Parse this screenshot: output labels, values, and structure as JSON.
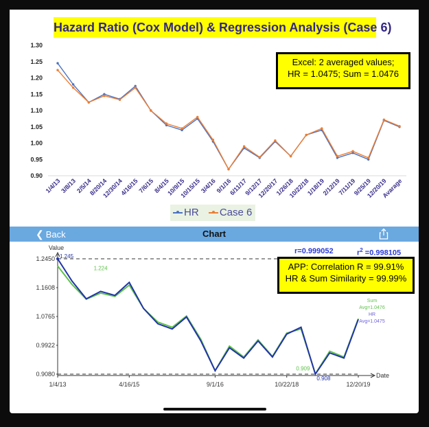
{
  "excel": {
    "title": "Hazard Ratio (Cox Model) & Regression Analysis (Case 6)",
    "note_line1": "Excel:  2 averaged values;",
    "note_line2": "HR = 1.0475; Sum = 1.0476",
    "legend": [
      "HR",
      "Case 6"
    ]
  },
  "app": {
    "back_label": "Back",
    "title": "Chart",
    "r_text": "r=0.999052",
    "r2_label": "r",
    "r2_sup": "2",
    "r2_value": " =0.998105",
    "note_line1": "APP:  Correlation R = 99.91%",
    "note_line2": "HR & Sum Similarity = 99.99%",
    "y_axis_label": "Value",
    "x_axis_label": "Date",
    "max_labels": [
      "1.245",
      "1.224"
    ],
    "min_labels": [
      "0.909",
      "0.908"
    ],
    "end_labels": {
      "sum_name": "Sum",
      "sum_avg": "Avg=1.0476",
      "hr_name": "HR",
      "hr_avg": "Avg=1.0475"
    }
  },
  "colors": {
    "hr_excel": "#4a72c4",
    "case6_excel": "#ed7d31",
    "hr_app": "#2234a8",
    "sum_app": "#5fc14b",
    "title_bg": "#ffff00",
    "nav_bar": "#6aa8e0"
  },
  "chart_data": [
    {
      "type": "line",
      "title": "Hazard Ratio (Cox Model) & Regression Analysis (Case 6)",
      "categories": [
        "1/4/13",
        "3/8/13",
        "2/5/14",
        "8/20/14",
        "12/30/14",
        "4/16/15",
        "7/6/15",
        "8/4/15",
        "10/9/15",
        "10/15/15",
        "3/4/16",
        "9/1/16",
        "6/11/17",
        "9/12/17",
        "12/20/17",
        "1/26/18",
        "10/22/18",
        "1/18/19",
        "2/12/19",
        "7/11/19",
        "9/25/19",
        "12/20/19",
        "Avarage"
      ],
      "series": [
        {
          "name": "HR",
          "values": [
            1.245,
            1.18,
            1.125,
            1.15,
            1.135,
            1.175,
            1.1,
            1.055,
            1.04,
            1.075,
            1.005,
            0.92,
            0.985,
            0.955,
            1.005,
            0.96,
            1.025,
            1.04,
            0.955,
            0.97,
            0.95,
            1.07,
            1.05
          ]
        },
        {
          "name": "Case 6",
          "values": [
            1.224,
            1.17,
            1.125,
            1.145,
            1.133,
            1.17,
            1.1,
            1.06,
            1.045,
            1.08,
            1.01,
            0.92,
            0.99,
            0.957,
            1.008,
            0.96,
            1.025,
            1.045,
            0.96,
            0.975,
            0.955,
            1.072,
            1.052
          ]
        }
      ],
      "ylim": [
        0.9,
        1.3
      ],
      "yticks": [
        "0.90",
        "0.95",
        "1.00",
        "1.05",
        "1.10",
        "1.15",
        "1.20",
        "1.25",
        "1.30"
      ],
      "grid": false,
      "legend": "bottom"
    },
    {
      "type": "line",
      "title": "Chart",
      "xlabel": "Date",
      "ylabel": "Value",
      "x_tick_labels": [
        "1/4/13",
        "4/16/15",
        "9/1/16",
        "10/22/18",
        "12/20/19"
      ],
      "x_tick_index": [
        0,
        5,
        11,
        16,
        21
      ],
      "yticks": [
        "0.9080",
        "0.9922",
        "1.0765",
        "1.1608",
        "1.2450"
      ],
      "ylim": [
        0.908,
        1.245
      ],
      "series": [
        {
          "name": "HR",
          "values": [
            1.245,
            1.18,
            1.128,
            1.15,
            1.138,
            1.176,
            1.1,
            1.055,
            1.04,
            1.075,
            1.005,
            0.918,
            0.985,
            0.955,
            1.005,
            0.958,
            1.025,
            1.045,
            0.908,
            0.97,
            0.955,
            1.068
          ]
        },
        {
          "name": "Sum",
          "values": [
            1.224,
            1.17,
            1.127,
            1.145,
            1.135,
            1.168,
            1.1,
            1.06,
            1.045,
            1.078,
            1.01,
            0.918,
            0.99,
            0.958,
            1.008,
            0.96,
            1.028,
            1.04,
            0.909,
            0.975,
            0.958,
            1.07
          ]
        }
      ],
      "reference_lines": {
        "max": 1.245,
        "min": 0.908
      },
      "grid": false
    }
  ]
}
